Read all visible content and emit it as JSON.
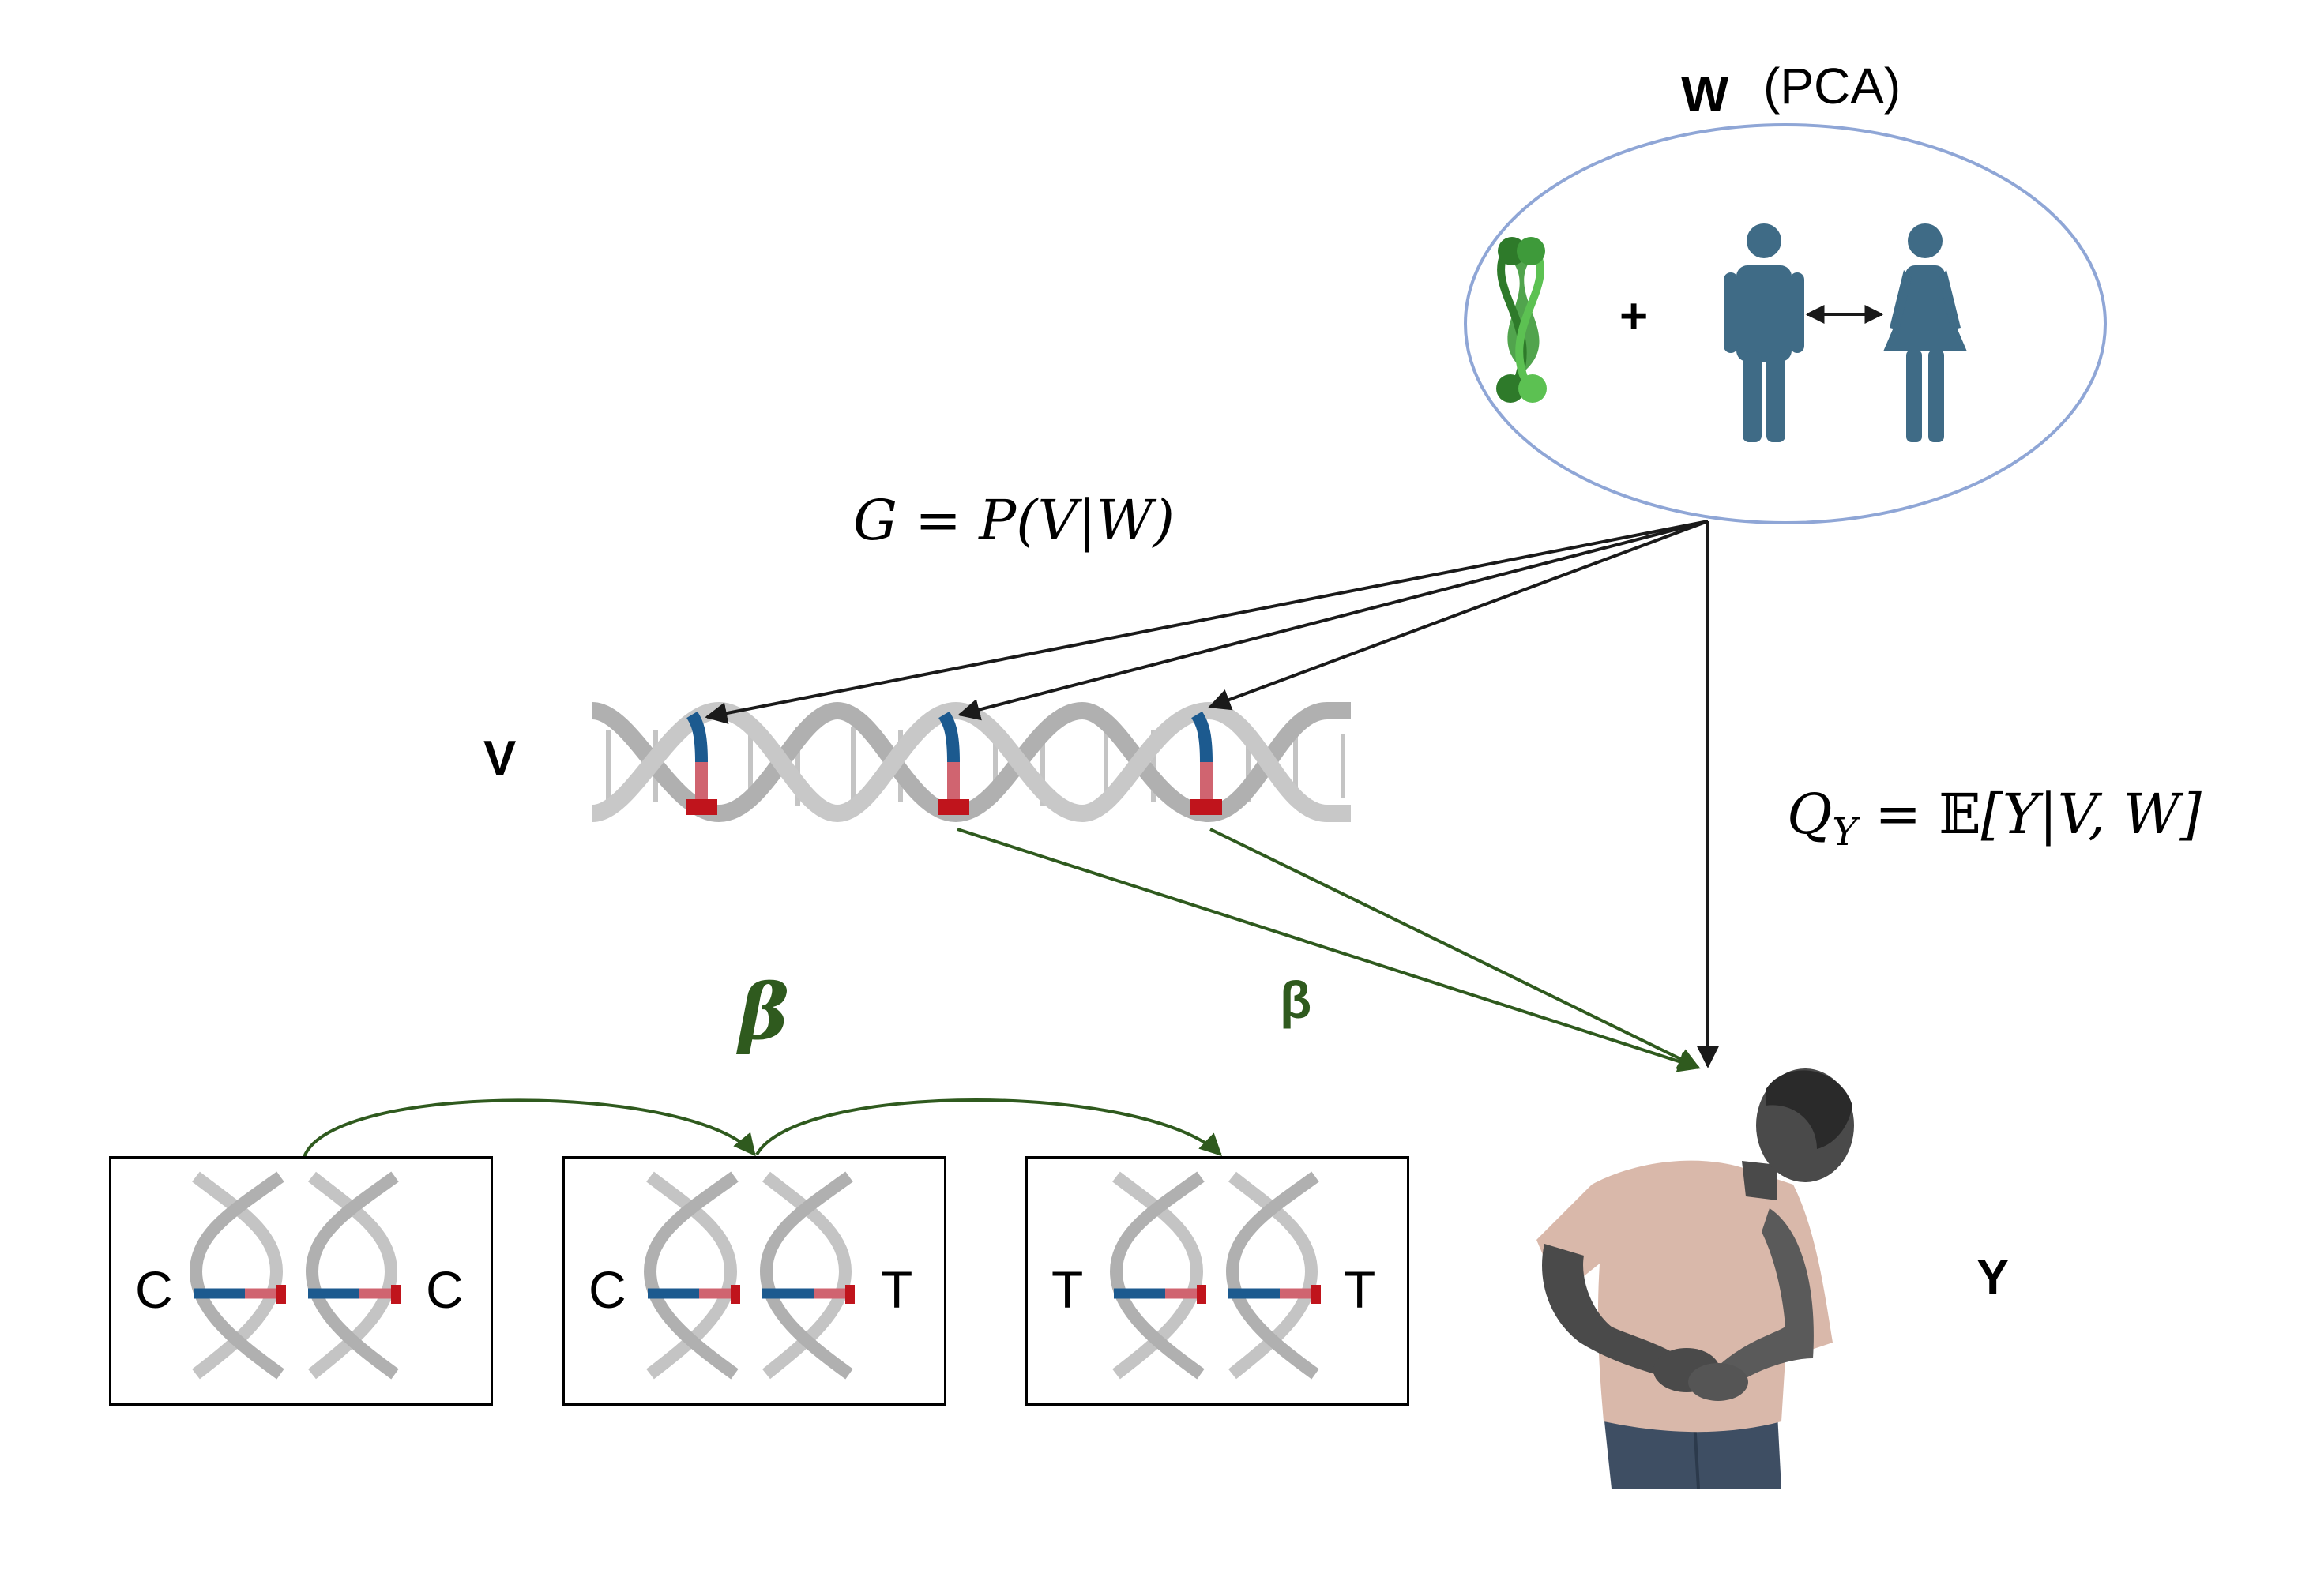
{
  "labels": {
    "w": "W",
    "pca": "(PCA)",
    "plus": "+",
    "v": "V",
    "y": "Y",
    "beta_left": "β",
    "beta_right": "β"
  },
  "equations": {
    "g": {
      "lhs": "G",
      "rhs": "= P(V|W)"
    },
    "q": {
      "lhs": "Q",
      "sub": "Y",
      "rhs_eq": "= ",
      "bb": "𝔼",
      "rhs": "[Y|V, W]"
    }
  },
  "genotypes": [
    {
      "left": "C",
      "right": "C"
    },
    {
      "left": "C",
      "right": "T"
    },
    {
      "left": "T",
      "right": "T"
    }
  ],
  "colors": {
    "ellipse": "#8fa6d6",
    "person_icon": "#3f6b86",
    "chromosome": "#3e9a3a",
    "arrow_black": "#1a1a1a",
    "arrow_green": "#2f5a1e",
    "beta_text": "#2f5a1e",
    "dna_gray": "#b8b8b8",
    "snp_blue": "#1c5a8f",
    "snp_red": "#c0141c"
  }
}
